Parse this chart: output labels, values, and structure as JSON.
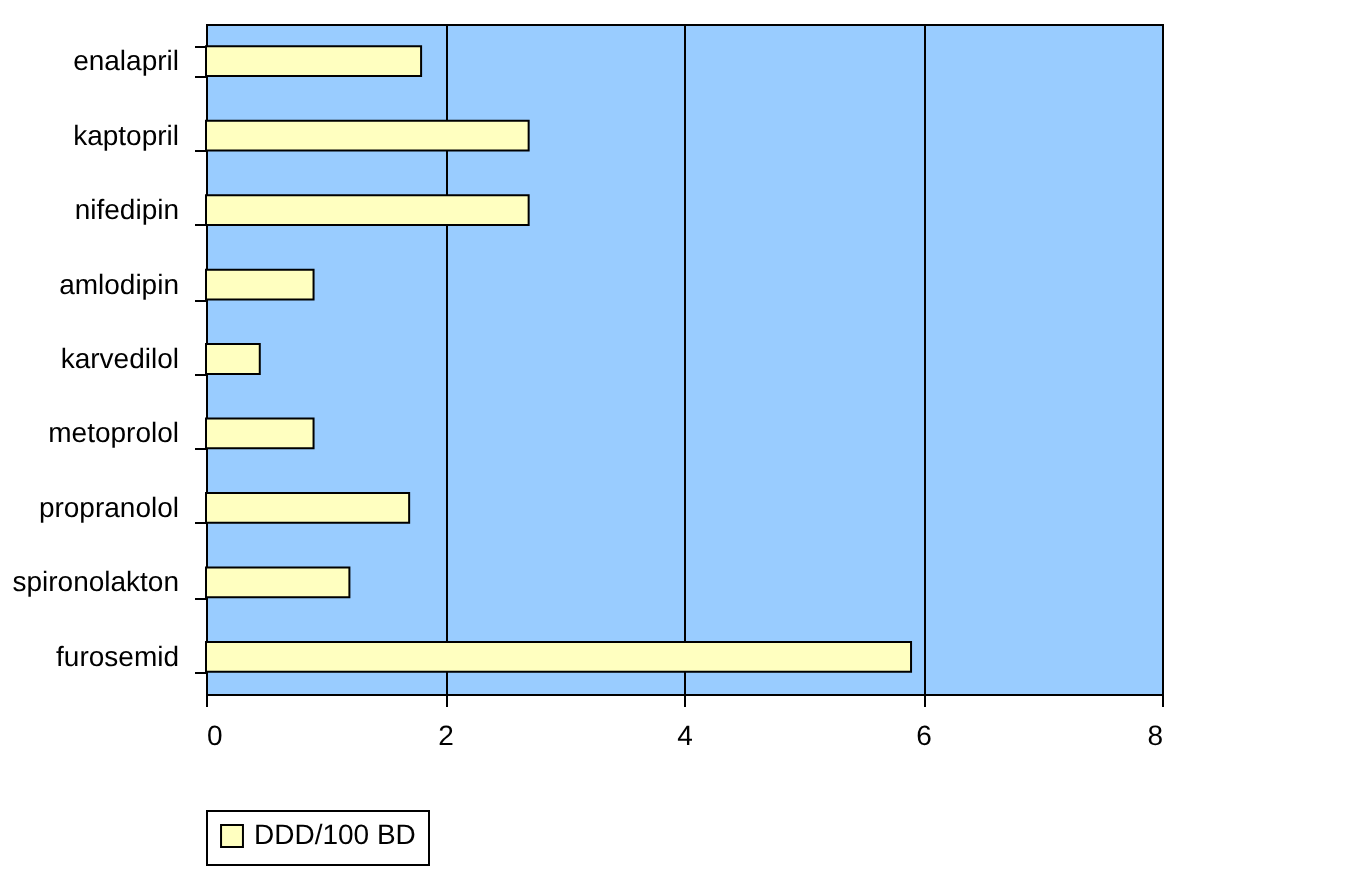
{
  "chart_data": {
    "type": "bar",
    "orientation": "horizontal",
    "categories": [
      "enalapril",
      "kaptopril",
      "nifedipin",
      "amlodipin",
      "karvedilol",
      "metoprolol",
      "propranolol",
      "spironolakton",
      "furosemid"
    ],
    "series": [
      {
        "name": "DDD/100 BD",
        "color": "#ffffc0",
        "values": [
          1.8,
          2.7,
          2.7,
          0.9,
          0.45,
          0.9,
          1.7,
          1.2,
          5.9
        ]
      }
    ],
    "xlim": [
      0,
      8
    ],
    "xticks": [
      0,
      2,
      4,
      6,
      8
    ],
    "grid": "x",
    "legend": "bottom"
  }
}
